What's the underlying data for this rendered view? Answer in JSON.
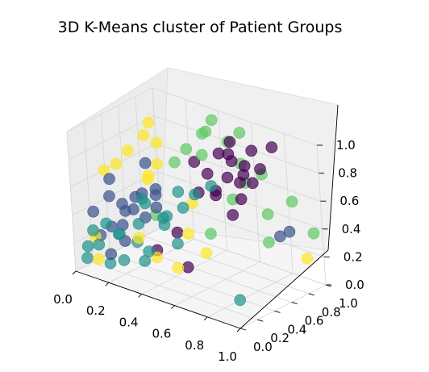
{
  "chart_data": {
    "type": "scatter",
    "projection": "3d",
    "title": "3D K-Means cluster of Patient Groups",
    "xlabel": "",
    "ylabel": "",
    "zlabel": "",
    "xlim": [
      0,
      1
    ],
    "ylim": [
      0,
      1
    ],
    "zlim": [
      0,
      1
    ],
    "grid": true,
    "legend": "none",
    "x_ticks": [
      "0.0",
      "0.2",
      "0.4",
      "0.6",
      "0.8",
      "1.0"
    ],
    "y_ticks": [
      "0.0",
      "0.2",
      "0.4",
      "0.6",
      "0.8",
      "1.0"
    ],
    "z_ticks": [
      "0.0",
      "0.2",
      "0.4",
      "0.6",
      "0.8",
      "1.0"
    ],
    "colormap": "viridis",
    "cluster_colors": [
      "#440154",
      "#3b528b",
      "#21918c",
      "#5ec962",
      "#fde725"
    ],
    "marker_alpha": 0.7,
    "series": [
      {
        "cluster": 0,
        "color": "#440154",
        "points": [
          [
            0.55,
            0.7,
            0.85
          ],
          [
            0.6,
            0.75,
            0.8
          ],
          [
            0.7,
            0.8,
            0.9
          ],
          [
            0.65,
            0.6,
            0.75
          ],
          [
            0.5,
            0.65,
            0.7
          ],
          [
            0.75,
            0.7,
            0.72
          ],
          [
            0.6,
            0.55,
            0.65
          ],
          [
            0.8,
            0.85,
            0.95
          ],
          [
            0.45,
            0.6,
            0.78
          ],
          [
            0.7,
            0.65,
            0.6
          ],
          [
            0.58,
            0.78,
            0.92
          ],
          [
            0.66,
            0.72,
            0.68
          ],
          [
            0.52,
            0.5,
            0.62
          ],
          [
            0.74,
            0.62,
            0.8
          ],
          [
            0.62,
            0.68,
            0.88
          ],
          [
            0.4,
            0.45,
            0.3
          ],
          [
            0.35,
            0.3,
            0.2
          ],
          [
            0.48,
            0.4,
            0.1
          ],
          [
            0.68,
            0.58,
            0.5
          ],
          [
            0.56,
            0.62,
            0.58
          ],
          [
            0.78,
            0.74,
            0.82
          ],
          [
            0.64,
            0.82,
            0.76
          ]
        ]
      },
      {
        "cluster": 1,
        "color": "#3b528b",
        "points": [
          [
            0.1,
            0.25,
            0.5
          ],
          [
            0.15,
            0.3,
            0.45
          ],
          [
            0.2,
            0.2,
            0.35
          ],
          [
            0.05,
            0.15,
            0.4
          ],
          [
            0.25,
            0.35,
            0.55
          ],
          [
            0.12,
            0.22,
            0.3
          ],
          [
            0.18,
            0.4,
            0.48
          ],
          [
            0.3,
            0.28,
            0.42
          ],
          [
            0.08,
            0.3,
            0.6
          ],
          [
            0.22,
            0.18,
            0.25
          ],
          [
            0.28,
            0.45,
            0.52
          ],
          [
            0.14,
            0.35,
            0.38
          ],
          [
            0.32,
            0.38,
            0.6
          ],
          [
            0.06,
            0.2,
            0.22
          ],
          [
            0.24,
            0.26,
            0.46
          ],
          [
            0.9,
            0.7,
            0.4
          ],
          [
            0.85,
            0.9,
            0.35
          ],
          [
            0.2,
            0.5,
            0.7
          ],
          [
            0.16,
            0.12,
            0.15
          ],
          [
            0.35,
            0.32,
            0.5
          ]
        ]
      },
      {
        "cluster": 2,
        "color": "#21918c",
        "points": [
          [
            0.1,
            0.1,
            0.2
          ],
          [
            0.2,
            0.15,
            0.3
          ],
          [
            0.05,
            0.05,
            0.1
          ],
          [
            0.3,
            0.2,
            0.4
          ],
          [
            0.15,
            0.25,
            0.25
          ],
          [
            0.4,
            0.3,
            0.45
          ],
          [
            0.25,
            0.1,
            0.15
          ],
          [
            0.35,
            0.4,
            0.35
          ],
          [
            0.12,
            0.18,
            0.05
          ],
          [
            0.45,
            0.25,
            0.5
          ],
          [
            0.22,
            0.32,
            0.2
          ],
          [
            0.5,
            0.35,
            0.55
          ],
          [
            0.08,
            0.08,
            0.3
          ],
          [
            0.38,
            0.15,
            0.25
          ],
          [
            0.28,
            0.28,
            0.1
          ],
          [
            0.42,
            0.45,
            0.6
          ],
          [
            0.55,
            0.4,
            0.65
          ],
          [
            0.18,
            0.05,
            0.4
          ],
          [
            0.6,
            0.5,
            0.7
          ],
          [
            0.48,
            0.3,
            0.3
          ],
          [
            0.32,
            0.22,
            0.58
          ],
          [
            0.9,
            0.2,
            0.1
          ],
          [
            0.02,
            0.12,
            0.15
          ],
          [
            0.26,
            0.36,
            0.48
          ]
        ]
      },
      {
        "cluster": 3,
        "color": "#5ec962",
        "points": [
          [
            0.4,
            0.8,
            0.9
          ],
          [
            0.5,
            0.9,
            0.85
          ],
          [
            0.35,
            0.7,
            0.8
          ],
          [
            0.6,
            0.85,
            0.75
          ],
          [
            0.45,
            0.75,
            0.95
          ],
          [
            0.55,
            0.95,
            0.92
          ],
          [
            0.3,
            0.65,
            0.7
          ],
          [
            0.65,
            0.8,
            0.65
          ],
          [
            0.7,
            0.9,
            0.7
          ],
          [
            0.85,
            0.95,
            0.55
          ],
          [
            1.0,
            0.9,
            0.4
          ],
          [
            0.75,
            0.85,
            0.45
          ],
          [
            0.5,
            0.6,
            0.85
          ],
          [
            0.42,
            0.88,
            0.98
          ],
          [
            0.62,
            0.7,
            0.55
          ],
          [
            0.3,
            0.4,
            0.4
          ],
          [
            0.58,
            0.5,
            0.35
          ],
          [
            0.8,
            0.75,
            0.3
          ]
        ]
      },
      {
        "cluster": 4,
        "color": "#fde725",
        "points": [
          [
            0.15,
            0.4,
            0.8
          ],
          [
            0.2,
            0.5,
            0.9
          ],
          [
            0.1,
            0.35,
            0.7
          ],
          [
            0.25,
            0.55,
            0.85
          ],
          [
            0.05,
            0.3,
            0.65
          ],
          [
            0.3,
            0.45,
            0.75
          ],
          [
            0.18,
            0.6,
            0.95
          ],
          [
            0.08,
            0.1,
            0.25
          ],
          [
            0.12,
            0.05,
            0.12
          ],
          [
            0.4,
            0.2,
            0.2
          ],
          [
            0.5,
            0.25,
            0.15
          ],
          [
            0.35,
            0.1,
            0.35
          ],
          [
            0.22,
            0.48,
            0.6
          ],
          [
            0.6,
            0.4,
            0.25
          ],
          [
            0.28,
            0.38,
            0.68
          ],
          [
            0.95,
            0.9,
            0.2
          ],
          [
            0.45,
            0.55,
            0.5
          ],
          [
            0.55,
            0.3,
            0.4
          ]
        ]
      }
    ]
  }
}
